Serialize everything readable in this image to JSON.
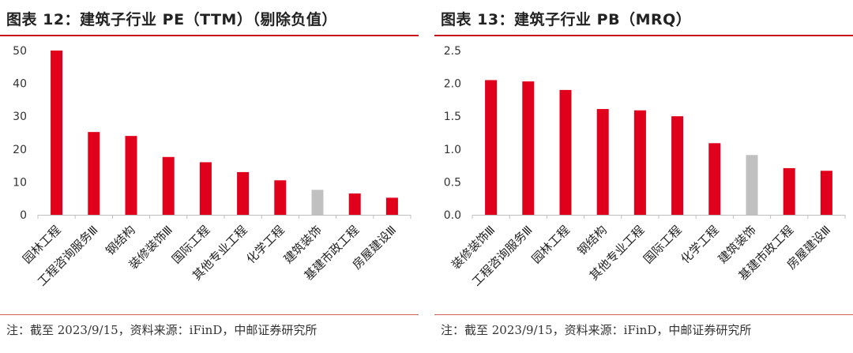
{
  "charts": [
    {
      "title": "图表 12：建筑子行业 PE（TTM）（剔除负值）",
      "note": "注：截至 2023/9/15，资料来源：iFinD，中邮证券研究所"
    },
    {
      "title": "图表 13：建筑子行业 PB（MRQ）",
      "note": "注：截至 2023/9/15，资料来源：iFinD，中邮证券研究所"
    }
  ],
  "colors": {
    "bar": "#e0001b",
    "highlight": "#c0c0c0",
    "accent": "#c8101c"
  },
  "chart_data": [
    {
      "type": "bar",
      "title": "图表 12：建筑子行业 PE（TTM）（剔除负值）",
      "categories": [
        "园林工程",
        "工程咨询服务Ⅲ",
        "钢结构",
        "装修装饰Ⅲ",
        "国际工程",
        "其他专业工程",
        "化学工程",
        "建筑装饰",
        "基建市政工程",
        "房屋建设Ⅲ"
      ],
      "values": [
        50.0,
        25.2,
        24.0,
        17.6,
        16.0,
        13.0,
        10.5,
        7.6,
        6.5,
        5.2
      ],
      "highlight_index": 7,
      "yticks": [
        "0",
        "10",
        "20",
        "30",
        "40",
        "50"
      ],
      "ylim": [
        0,
        50
      ],
      "grid": false
    },
    {
      "type": "bar",
      "title": "图表 13：建筑子行业 PB（MRQ）",
      "categories": [
        "装修装饰Ⅲ",
        "工程咨询服务Ⅲ",
        "园林工程",
        "钢结构",
        "其他专业工程",
        "国际工程",
        "化学工程",
        "建筑装饰",
        "基建市政工程",
        "房屋建设Ⅲ"
      ],
      "values": [
        2.05,
        2.03,
        1.9,
        1.61,
        1.59,
        1.5,
        1.09,
        0.91,
        0.71,
        0.67
      ],
      "highlight_index": 7,
      "yticks": [
        "0.0",
        "0.5",
        "1.0",
        "1.5",
        "2.0",
        "2.5"
      ],
      "ylim": [
        0,
        2.5
      ],
      "grid": false
    }
  ]
}
